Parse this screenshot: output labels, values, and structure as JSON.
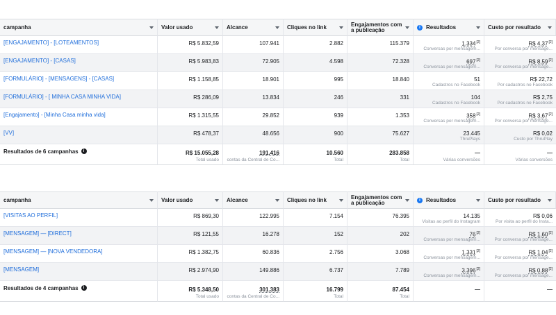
{
  "headers": [
    "campanha",
    "Valor usado",
    "Alcance",
    "Cliques no link",
    "Engajamentos com a publicação",
    "Resultados",
    "Custo por resultado"
  ],
  "table1": {
    "rows": [
      {
        "name": "[ENGAJAMENTO] - [LOTEAMENTOS]",
        "valor": "R$ 5.832,59",
        "alcance": "107.941",
        "cliques": "2.882",
        "engaj": "115.379",
        "res": "1.334",
        "res_sup": "[2]",
        "res_sub": "Conversas por mensagem...",
        "custo": "R$ 4,37",
        "custo_sup": "[2]",
        "custo_sub": "Por conversa por mensage..."
      },
      {
        "name": "[ENGAJAMENTO] - [CASAS]",
        "valor": "R$ 5.983,83",
        "alcance": "72.905",
        "cliques": "4.598",
        "engaj": "72.328",
        "res": "697",
        "res_sup": "[2]",
        "res_sub": "Conversas por mensagem...",
        "custo": "R$ 8,59",
        "custo_sup": "[2]",
        "custo_sub": "Por conversa por mensage..."
      },
      {
        "name": "[FORMULÁRIO] - [MENSAGENS] - [CASAS]",
        "valor": "R$ 1.158,85",
        "alcance": "18.901",
        "cliques": "995",
        "engaj": "18.840",
        "res": "51",
        "res_sup": "",
        "res_sub": "Cadastros no Facebook",
        "custo": "R$ 22,72",
        "custo_sup": "",
        "custo_sub": "Por cadastros no Facebook"
      },
      {
        "name": "[FORMULÁRIO] - [ MINHA CASA MINHA VIDA]",
        "valor": "R$ 286,09",
        "alcance": "13.834",
        "cliques": "246",
        "engaj": "331",
        "res": "104",
        "res_sup": "",
        "res_sub": "Cadastros no Facebook",
        "custo": "R$ 2,75",
        "custo_sup": "",
        "custo_sub": "Por cadastros no Facebook"
      },
      {
        "name": "[Engajamento] - [Minha Casa minha vida]",
        "valor": "R$ 1.315,55",
        "alcance": "29.852",
        "cliques": "939",
        "engaj": "1.353",
        "res": "358",
        "res_sup": "[2]",
        "res_sub": "Conversas por mensagem...",
        "custo": "R$ 3,67",
        "custo_sup": "[2]",
        "custo_sub": "Por conversa por mensage..."
      },
      {
        "name": "[VV]",
        "valor": "R$ 478,37",
        "alcance": "48.656",
        "cliques": "900",
        "engaj": "75.627",
        "res": "23.445",
        "res_sup": "",
        "res_sub": "ThruPlays",
        "custo": "R$ 0,02",
        "custo_sup": "",
        "custo_sub": "Custo por ThruPlay"
      }
    ],
    "summary": {
      "name": "Resultados de 6 campanhas",
      "valor": "R$ 15.055,28",
      "valor_sub": "Total usado",
      "alcance": "191.416",
      "alcance_sub": "contas da Central de Co...",
      "cliques": "10.560",
      "cliques_sub": "Total",
      "engaj": "283.858",
      "engaj_sub": "Total",
      "res": "—",
      "res_sub": "Várias conversões",
      "custo": "—",
      "custo_sub": "Várias conversões"
    }
  },
  "table2": {
    "rows": [
      {
        "name": "[VISITAS AO PERFIL]",
        "valor": "R$ 869,30",
        "alcance": "122.995",
        "cliques": "7.154",
        "engaj": "76.395",
        "res": "14.135",
        "res_sup": "",
        "res_sub": "Visitas ao perfil do Instagram",
        "custo": "R$ 0,06",
        "custo_sup": "",
        "custo_sub": "Por visita ao perfil do Insta..."
      },
      {
        "name": "[MENSAGEM] — [DIRECT]",
        "valor": "R$ 121,55",
        "alcance": "16.278",
        "cliques": "152",
        "engaj": "202",
        "res": "76",
        "res_sup": "[2]",
        "res_sub": "Conversas por mensagem...",
        "custo": "R$ 1,60",
        "custo_sup": "[2]",
        "custo_sub": "Por conversa por mensage..."
      },
      {
        "name": "[MENSAGEM] — [NOVA VENDEDORA]",
        "valor": "R$ 1.382,75",
        "alcance": "60.836",
        "cliques": "2.756",
        "engaj": "3.068",
        "res": "1.331",
        "res_sup": "[2]",
        "res_sub": "Conversas por mensagem...",
        "custo": "R$ 1,04",
        "custo_sup": "[2]",
        "custo_sub": "Por conversa por mensage..."
      },
      {
        "name": "[MENSAGEM]",
        "valor": "R$ 2.974,90",
        "alcance": "149.886",
        "cliques": "6.737",
        "engaj": "7.789",
        "res": "3.396",
        "res_sup": "[2]",
        "res_sub": "Conversas por mensagem...",
        "custo": "R$ 0,88",
        "custo_sup": "[2]",
        "custo_sub": "Por conversa por mensage..."
      }
    ],
    "summary": {
      "name": "Resultados de 4 campanhas",
      "valor": "R$ 5.348,50",
      "valor_sub": "Total usado",
      "alcance": "301.383",
      "alcance_sub": "contas da Central de Co...",
      "cliques": "16.799",
      "cliques_sub": "Total",
      "engaj": "87.454",
      "engaj_sub": "Total",
      "res": "—",
      "res_sub": "",
      "custo": "—",
      "custo_sub": ""
    }
  }
}
